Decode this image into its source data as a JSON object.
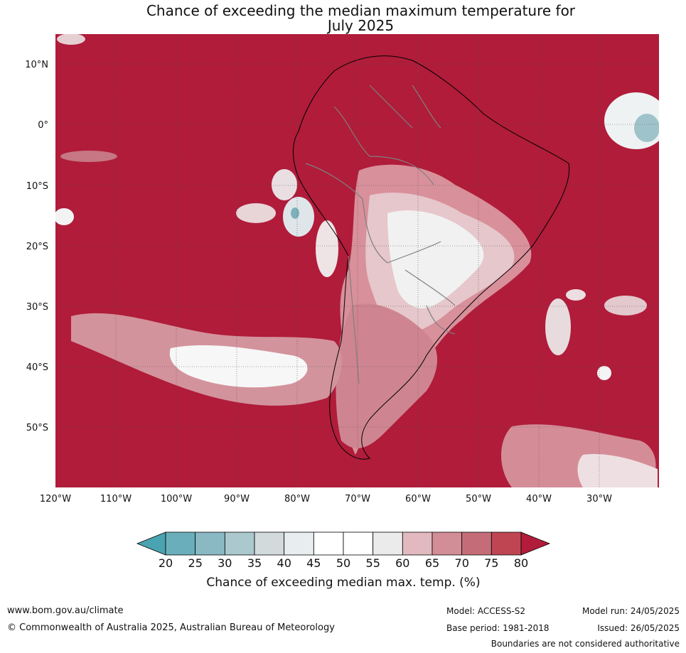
{
  "title": {
    "line1": "Chance of exceeding the median maximum temperature for",
    "line2": "July 2025"
  },
  "map": {
    "lat_labels": [
      "10°N",
      "0°",
      "10°S",
      "20°S",
      "30°S",
      "40°S",
      "50°S"
    ],
    "lon_labels": [
      "120°W",
      "110°W",
      "100°W",
      "90°W",
      "80°W",
      "70°W",
      "60°W",
      "50°W",
      "40°W",
      "30°W"
    ],
    "background_color": "#b01c3a"
  },
  "colorbar": {
    "labels": [
      "20",
      "25",
      "30",
      "35",
      "40",
      "45",
      "50",
      "55",
      "60",
      "65",
      "70",
      "75",
      "80"
    ],
    "colors": [
      "#4aa3b1",
      "#6aaebb",
      "#8ab9c4",
      "#aac8ce",
      "#d3dadc",
      "#e8eef0",
      "#ffffff",
      "#ffffff",
      "#ecebec",
      "#e1b9be",
      "#d28d97",
      "#c46d78",
      "#bf4553",
      "#b01c3a"
    ],
    "title": "Chance of exceeding median max. temp. (%)"
  },
  "footer": {
    "url": "www.bom.gov.au/climate",
    "copyright": "© Commonwealth of Australia 2025, Australian Bureau of Meteorology",
    "model": "Model: ACCESS-S2",
    "base_period": "Base period: 1981-2018",
    "model_run": "Model run: 24/05/2025",
    "issued": "Issued: 26/05/2025",
    "disclaimer": "Boundaries are not considered authoritative"
  }
}
